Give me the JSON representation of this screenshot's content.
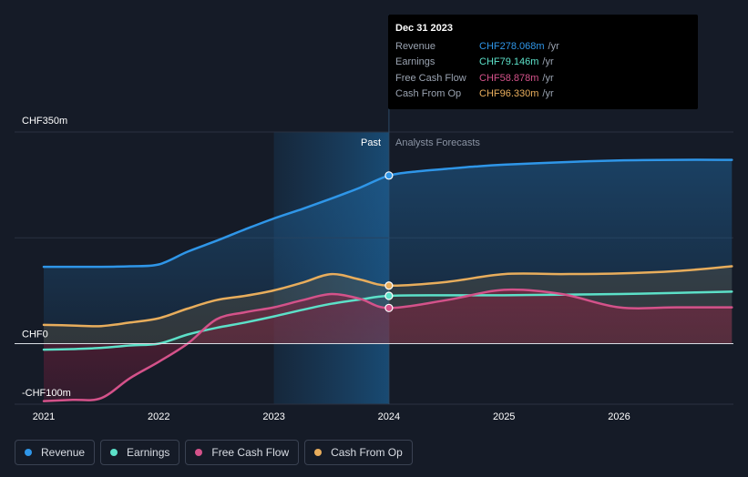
{
  "tooltip": {
    "date": "Dec 31 2023",
    "rows": [
      {
        "label": "Revenue",
        "value": "CHF278.068m",
        "unit": "/yr",
        "color": "#2f96e8"
      },
      {
        "label": "Earnings",
        "value": "CHF79.146m",
        "unit": "/yr",
        "color": "#5ce0c8"
      },
      {
        "label": "Free Cash Flow",
        "value": "CHF58.878m",
        "unit": "/yr",
        "color": "#d4528a"
      },
      {
        "label": "Cash From Op",
        "value": "CHF96.330m",
        "unit": "/yr",
        "color": "#e8ad5c"
      }
    ]
  },
  "legend": [
    {
      "label": "Revenue",
      "color": "#2f96e8"
    },
    {
      "label": "Earnings",
      "color": "#5ce0c8"
    },
    {
      "label": "Free Cash Flow",
      "color": "#d4528a"
    },
    {
      "label": "Cash From Op",
      "color": "#e8ad5c"
    }
  ],
  "chart_data": {
    "type": "line",
    "title": "",
    "xlabel": "",
    "ylabel": "",
    "x_ticks": [
      "2021",
      "2022",
      "2023",
      "2024",
      "2025",
      "2026"
    ],
    "y_ticks": [
      {
        "label": "CHF350m",
        "value": 350
      },
      {
        "label": "CHF0",
        "value": 0
      },
      {
        "label": "-CHF100m",
        "value": -100
      }
    ],
    "xlim": [
      2020.78,
      2026.98
    ],
    "ylim": [
      -100,
      350
    ],
    "past_label": "Past",
    "forecast_label": "Analysts Forecasts",
    "forecast_start": 2024.0,
    "highlight_start": 2023.0,
    "series": [
      {
        "name": "Revenue",
        "color": "#2f96e8",
        "area": true,
        "x": [
          2021.0,
          2021.25,
          2021.5,
          2021.75,
          2022.0,
          2022.25,
          2022.5,
          2022.75,
          2023.0,
          2023.25,
          2023.5,
          2023.75,
          2024.0,
          2024.25,
          2024.5,
          2024.75,
          2025.0,
          2025.5,
          2026.0,
          2026.5,
          2026.98
        ],
        "y": [
          127,
          127,
          127,
          128,
          131,
          152,
          170,
          189,
          207,
          223,
          240,
          258,
          278,
          285,
          289,
          293,
          296,
          300,
          303,
          304,
          304
        ]
      },
      {
        "name": "Cash From Op",
        "color": "#e8ad5c",
        "area": true,
        "x": [
          2021.0,
          2021.25,
          2021.5,
          2021.75,
          2022.0,
          2022.25,
          2022.5,
          2022.75,
          2023.0,
          2023.25,
          2023.5,
          2023.75,
          2024.0,
          2024.5,
          2025.0,
          2025.5,
          2026.0,
          2026.5,
          2026.98
        ],
        "y": [
          31,
          30,
          29,
          35,
          42,
          58,
          72,
          79,
          88,
          101,
          115,
          106,
          96,
          102,
          115,
          115,
          116,
          120,
          128
        ]
      },
      {
        "name": "Earnings",
        "color": "#5ce0c8",
        "area": false,
        "x": [
          2021.0,
          2021.25,
          2021.5,
          2021.75,
          2022.0,
          2022.25,
          2022.5,
          2022.75,
          2023.0,
          2023.25,
          2023.5,
          2023.75,
          2024.0,
          2024.5,
          2025.0,
          2025.5,
          2026.0,
          2026.5,
          2026.98
        ],
        "y": [
          -10,
          -9,
          -7,
          -3,
          0,
          15,
          26,
          35,
          45,
          56,
          66,
          73,
          79,
          80,
          80,
          81,
          82,
          84,
          86
        ]
      },
      {
        "name": "Free Cash Flow",
        "color": "#d4528a",
        "area": true,
        "x": [
          2021.0,
          2021.25,
          2021.5,
          2021.75,
          2022.0,
          2022.25,
          2022.5,
          2022.75,
          2023.0,
          2023.25,
          2023.5,
          2023.75,
          2024.0,
          2024.5,
          2025.0,
          2025.5,
          2026.0,
          2026.5,
          2026.98
        ],
        "y": [
          -95,
          -93,
          -90,
          -57,
          -30,
          0,
          40,
          52,
          60,
          72,
          82,
          74,
          59,
          72,
          89,
          82,
          60,
          60,
          60
        ]
      }
    ]
  }
}
